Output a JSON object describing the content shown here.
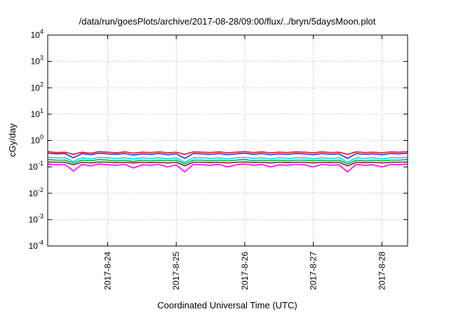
{
  "chart_data": {
    "type": "line",
    "title": "/data/run/goesPlots/archive/2017-08-28/09:00/flux/../bryn/5daysMoon.plot",
    "xlabel": "Coordinated Universal Time (UTC)",
    "ylabel": "cGy/day",
    "yscale": "log",
    "ylim": [
      0.0001,
      10000
    ],
    "xlim": [
      "2017-08-23 03:00",
      "2017-08-28 09:00"
    ],
    "grid": true,
    "legend": "none",
    "x_ticks": [
      "2017-8-24",
      "2017-8-25",
      "2017-8-26",
      "2017-8-27",
      "2017-8-28"
    ],
    "y_ticks": [
      {
        "base": "10",
        "exp": "-4"
      },
      {
        "base": "10",
        "exp": "-3"
      },
      {
        "base": "10",
        "exp": "-2"
      },
      {
        "base": "10",
        "exp": "-1"
      },
      {
        "base": "10",
        "exp": "0"
      },
      {
        "base": "10",
        "exp": "1"
      },
      {
        "base": "10",
        "exp": "2"
      },
      {
        "base": "10",
        "exp": "3"
      },
      {
        "base": "10",
        "exp": "4"
      }
    ],
    "series_common": {
      "x": [
        "2017-08-23 03:00",
        "2017-08-23 06:00",
        "2017-08-23 09:00",
        "2017-08-23 12:00",
        "2017-08-23 15:00",
        "2017-08-23 18:00",
        "2017-08-23 21:00",
        "2017-08-24 00:00",
        "2017-08-24 03:00",
        "2017-08-24 06:00",
        "2017-08-24 09:00",
        "2017-08-24 12:00",
        "2017-08-24 15:00",
        "2017-08-24 18:00",
        "2017-08-24 21:00",
        "2017-08-25 00:00",
        "2017-08-25 03:00",
        "2017-08-25 06:00",
        "2017-08-25 09:00",
        "2017-08-25 12:00",
        "2017-08-25 15:00",
        "2017-08-25 18:00",
        "2017-08-25 21:00",
        "2017-08-26 00:00",
        "2017-08-26 03:00",
        "2017-08-26 06:00",
        "2017-08-26 09:00",
        "2017-08-26 12:00",
        "2017-08-26 15:00",
        "2017-08-26 18:00",
        "2017-08-26 21:00",
        "2017-08-27 00:00",
        "2017-08-27 03:00",
        "2017-08-27 06:00",
        "2017-08-27 09:00",
        "2017-08-27 12:00",
        "2017-08-27 15:00",
        "2017-08-27 18:00",
        "2017-08-27 21:00",
        "2017-08-28 00:00",
        "2017-08-28 03:00",
        "2017-08-28 06:00",
        "2017-08-28 09:00"
      ]
    },
    "series": [
      {
        "color": "#e8102a",
        "values": [
          0.38,
          0.35,
          0.36,
          0.3,
          0.36,
          0.33,
          0.38,
          0.36,
          0.34,
          0.37,
          0.33,
          0.36,
          0.35,
          0.37,
          0.34,
          0.36,
          0.3,
          0.37,
          0.36,
          0.35,
          0.37,
          0.34,
          0.36,
          0.38,
          0.35,
          0.37,
          0.34,
          0.36,
          0.35,
          0.37,
          0.36,
          0.34,
          0.37,
          0.35,
          0.36,
          0.3,
          0.37,
          0.35,
          0.36,
          0.34,
          0.37,
          0.36,
          0.38
        ]
      },
      {
        "color": "#1f3de0",
        "values": [
          0.33,
          0.31,
          0.32,
          0.22,
          0.32,
          0.29,
          0.33,
          0.31,
          0.3,
          0.32,
          0.28,
          0.31,
          0.3,
          0.32,
          0.29,
          0.31,
          0.21,
          0.32,
          0.31,
          0.3,
          0.32,
          0.29,
          0.31,
          0.33,
          0.3,
          0.32,
          0.29,
          0.31,
          0.3,
          0.32,
          0.31,
          0.29,
          0.32,
          0.3,
          0.31,
          0.21,
          0.32,
          0.3,
          0.31,
          0.29,
          0.32,
          0.31,
          0.33
        ]
      },
      {
        "color": "#00e0e0",
        "values": [
          0.23,
          0.22,
          0.22,
          0.16,
          0.22,
          0.2,
          0.23,
          0.22,
          0.21,
          0.22,
          0.2,
          0.22,
          0.21,
          0.22,
          0.2,
          0.22,
          0.15,
          0.22,
          0.22,
          0.21,
          0.22,
          0.2,
          0.22,
          0.23,
          0.21,
          0.22,
          0.2,
          0.22,
          0.21,
          0.22,
          0.22,
          0.2,
          0.22,
          0.21,
          0.22,
          0.15,
          0.22,
          0.21,
          0.22,
          0.2,
          0.22,
          0.22,
          0.23
        ]
      },
      {
        "color": "#1a9e3a",
        "values": [
          0.19,
          0.18,
          0.18,
          0.14,
          0.18,
          0.17,
          0.19,
          0.18,
          0.17,
          0.18,
          0.16,
          0.18,
          0.17,
          0.18,
          0.17,
          0.18,
          0.13,
          0.18,
          0.18,
          0.17,
          0.18,
          0.17,
          0.18,
          0.19,
          0.17,
          0.18,
          0.17,
          0.18,
          0.17,
          0.18,
          0.18,
          0.17,
          0.18,
          0.17,
          0.18,
          0.13,
          0.18,
          0.17,
          0.18,
          0.17,
          0.18,
          0.18,
          0.19
        ]
      },
      {
        "color": "#7a1f2e",
        "values": [
          0.155,
          0.15,
          0.15,
          0.12,
          0.15,
          0.14,
          0.155,
          0.15,
          0.145,
          0.15,
          0.14,
          0.15,
          0.145,
          0.15,
          0.14,
          0.15,
          0.11,
          0.15,
          0.15,
          0.145,
          0.15,
          0.14,
          0.15,
          0.155,
          0.145,
          0.15,
          0.14,
          0.15,
          0.145,
          0.15,
          0.15,
          0.14,
          0.15,
          0.145,
          0.15,
          0.11,
          0.15,
          0.145,
          0.15,
          0.14,
          0.15,
          0.15,
          0.155
        ]
      },
      {
        "color": "#ff00ff",
        "values": [
          0.13,
          0.12,
          0.125,
          0.07,
          0.125,
          0.11,
          0.13,
          0.12,
          0.115,
          0.125,
          0.09,
          0.12,
          0.115,
          0.125,
          0.1,
          0.12,
          0.065,
          0.125,
          0.12,
          0.115,
          0.125,
          0.1,
          0.12,
          0.13,
          0.115,
          0.125,
          0.1,
          0.12,
          0.115,
          0.125,
          0.12,
          0.1,
          0.125,
          0.115,
          0.12,
          0.065,
          0.125,
          0.115,
          0.12,
          0.1,
          0.125,
          0.12,
          0.13
        ]
      }
    ]
  }
}
